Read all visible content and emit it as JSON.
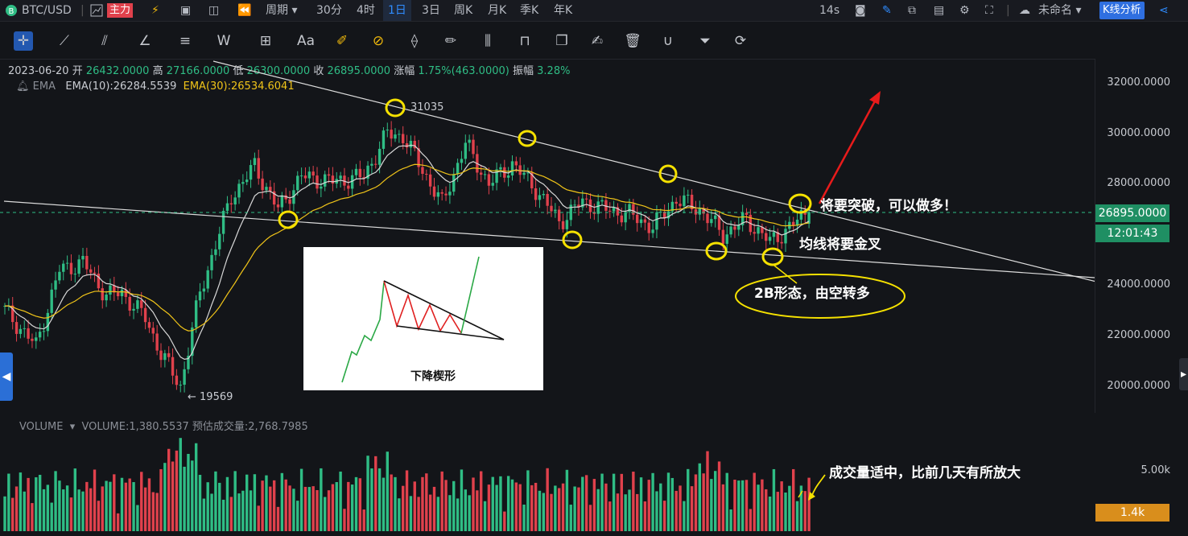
{
  "topbar": {
    "symbol": "BTC/USD",
    "items": [
      "主力",
      "周期",
      "30分",
      "4时",
      "1日",
      "3日",
      "周K",
      "月K",
      "季K",
      "年K"
    ],
    "active_interval": "1日",
    "timer": "14s",
    "layout_name": "未命名",
    "mode_button": "K线分析"
  },
  "ohlc": {
    "date": "2023-06-20",
    "open_label": "开",
    "open": "26432.0000",
    "high_label": "高",
    "high": "27166.0000",
    "low_label": "低",
    "low": "26300.0000",
    "close_label": "收",
    "close": "26895.0000",
    "change_label": "涨幅",
    "change": "1.75%(463.0000)",
    "amp_label": "振幅",
    "amp": "3.28%"
  },
  "ema": {
    "name": "EMA",
    "ema10": "EMA(10):26284.5539",
    "ema30": "EMA(30):26534.6041"
  },
  "price_axis": [
    "32000.0000",
    "30000.0000",
    "28000.0000",
    "24000.0000",
    "22000.0000",
    "20000.0000"
  ],
  "current_price": "26895.0000",
  "countdown": "12:01:43",
  "high_marker": "31035",
  "low_marker": "← 19569",
  "volume": {
    "name": "VOLUME",
    "value": "VOLUME:1,380.5537",
    "estimate": "预估成交量:2,768.7985",
    "axis_label": "5.00k",
    "current": "1.4k"
  },
  "annotations": {
    "breakout": "将要突破，可以做多！",
    "cross": "均线将要金叉",
    "pattern_2b": "2B形态，由空转多",
    "volume_note": "成交量适中，比前几天有所放大",
    "wedge_caption": "下降楔形"
  },
  "colors": {
    "up": "#2fbd85",
    "down": "#e0414c",
    "ema10": "#d8d8d8",
    "ema30": "#f0c419",
    "accent": "#2f8cff"
  },
  "chart_data": {
    "type": "candlestick",
    "title": "BTC/USD 1日",
    "ylim": [
      19000,
      32500
    ],
    "yticks": [
      32000,
      30000,
      28000,
      24000,
      22000,
      20000
    ],
    "current_price": 26895,
    "swing_high": 31035,
    "swing_low": 19569,
    "series": [
      {
        "name": "EMA(10)",
        "last": 26284.5539
      },
      {
        "name": "EMA(30)",
        "last": 26534.6041
      }
    ],
    "last_candle": {
      "date": "2023-06-20",
      "open": 26432,
      "high": 27166,
      "low": 26300,
      "close": 26895
    },
    "volume_last": 1380.5537,
    "volume_estimate": 2768.7985
  }
}
